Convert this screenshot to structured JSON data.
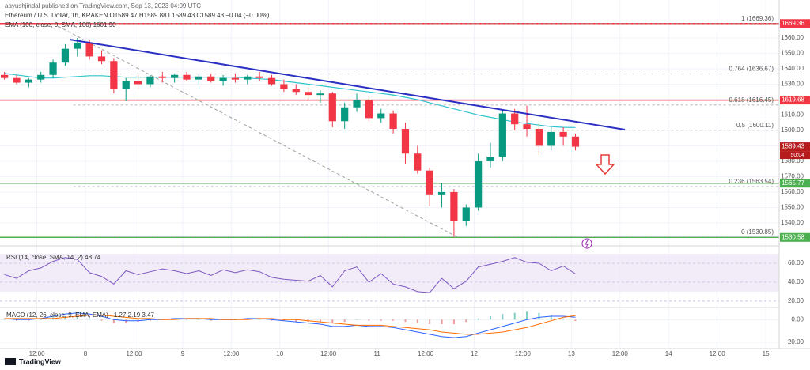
{
  "chart_data": {
    "type": "candlestick",
    "publisher": "aayushjindal published on TradingView.com, Sep 13, 2023 04:09 UTC",
    "title": "Ethereum / U.S. Dollar, 1h, KRAKEN  O1589.47 H1589.88 L1589.43 C1589.43 −0.04 (−0.00%)",
    "ema_label": "EMA (100, close, 0, SMA, 100)  1601.90",
    "brand": "TradingView",
    "colors": {
      "up": "#089981",
      "down": "#f23645",
      "trend": "#2b2fc2",
      "ema": "#2ec4cf",
      "fib": "#9a7a4a",
      "rsi": "#7e57c2",
      "macd": "#2962ff",
      "signal": "#ff6d00"
    },
    "grid": true,
    "xlim": [
      2.9,
      195.3
    ],
    "xticks": [
      {
        "value": 12,
        "label": "12:00"
      },
      {
        "value": 24,
        "label": "8"
      },
      {
        "value": 36,
        "label": "12:00"
      },
      {
        "value": 48,
        "label": "9"
      },
      {
        "value": 60,
        "label": "12:00"
      },
      {
        "value": 72,
        "label": "10"
      },
      {
        "value": 84,
        "label": "12:00"
      },
      {
        "value": 96,
        "label": "11"
      },
      {
        "value": 108,
        "label": "12:00"
      },
      {
        "value": 120,
        "label": "12"
      },
      {
        "value": 132,
        "label": "12:00"
      },
      {
        "value": 144,
        "label": "13"
      },
      {
        "value": 156,
        "label": "12:00"
      },
      {
        "value": 168,
        "label": "14"
      },
      {
        "value": 180,
        "label": "12:00"
      },
      {
        "value": 192,
        "label": "15"
      }
    ],
    "ylim": [
      1525.6,
      1675.4
    ],
    "yticks": [
      {
        "value": 1540,
        "label": "1540.00"
      },
      {
        "value": 1550,
        "label": "1550.00"
      },
      {
        "value": 1560,
        "label": "1560.00"
      },
      {
        "value": 1570,
        "label": "1570.00"
      },
      {
        "value": 1580,
        "label": "1580.00"
      },
      {
        "value": 1590,
        "label": "1590.00"
      },
      {
        "value": 1600,
        "label": "1600.00"
      },
      {
        "value": 1610,
        "label": "1610.00"
      },
      {
        "value": 1620,
        "label": "1620.00"
      },
      {
        "value": 1630,
        "label": "1630.00"
      },
      {
        "value": 1640,
        "label": "1640.00"
      },
      {
        "value": 1650,
        "label": "1650.00"
      },
      {
        "value": 1660,
        "label": "1660.00"
      }
    ],
    "x": [
      4,
      7,
      10,
      13,
      16,
      19,
      22,
      25,
      28,
      31,
      34,
      37,
      40,
      43,
      46,
      49,
      52,
      55,
      58,
      61,
      64,
      67,
      70,
      73,
      76,
      79,
      82,
      85,
      88,
      91,
      94,
      97,
      100,
      103,
      106,
      109,
      112,
      115,
      118,
      121,
      124,
      127,
      130,
      133,
      136,
      139,
      142,
      145
    ],
    "ohlc": [
      [
        1636,
        1638,
        1633,
        1634
      ],
      [
        1634,
        1636,
        1630,
        1631
      ],
      [
        1631,
        1634,
        1628,
        1633
      ],
      [
        1633,
        1638,
        1631,
        1636
      ],
      [
        1636,
        1646,
        1634,
        1644
      ],
      [
        1644,
        1656,
        1642,
        1653
      ],
      [
        1653,
        1660,
        1648,
        1657
      ],
      [
        1657,
        1659,
        1646,
        1648
      ],
      [
        1648,
        1652,
        1643,
        1645
      ],
      [
        1645,
        1647,
        1624,
        1627
      ],
      [
        1627,
        1634,
        1619,
        1632
      ],
      [
        1632,
        1636,
        1627,
        1630
      ],
      [
        1630,
        1636,
        1628,
        1635
      ],
      [
        1635,
        1638,
        1631,
        1634
      ],
      [
        1634,
        1637,
        1631,
        1636
      ],
      [
        1636,
        1638,
        1632,
        1633
      ],
      [
        1633,
        1637,
        1630,
        1635
      ],
      [
        1635,
        1637,
        1631,
        1632
      ],
      [
        1632,
        1636,
        1629,
        1634
      ],
      [
        1634,
        1637,
        1631,
        1633
      ],
      [
        1633,
        1636,
        1630,
        1635
      ],
      [
        1635,
        1638,
        1632,
        1634
      ],
      [
        1634,
        1636,
        1629,
        1630
      ],
      [
        1630,
        1633,
        1625,
        1627
      ],
      [
        1627,
        1630,
        1623,
        1625
      ],
      [
        1625,
        1628,
        1620,
        1623
      ],
      [
        1623,
        1626,
        1618,
        1624
      ],
      [
        1624,
        1625,
        1602,
        1606
      ],
      [
        1606,
        1618,
        1601,
        1615
      ],
      [
        1615,
        1624,
        1612,
        1620
      ],
      [
        1620,
        1622,
        1606,
        1608
      ],
      [
        1608,
        1614,
        1605,
        1611
      ],
      [
        1611,
        1613,
        1598,
        1601
      ],
      [
        1601,
        1605,
        1578,
        1585
      ],
      [
        1585,
        1590,
        1572,
        1574
      ],
      [
        1574,
        1576,
        1551,
        1558
      ],
      [
        1558,
        1566,
        1550,
        1560
      ],
      [
        1560,
        1562,
        1531,
        1541
      ],
      [
        1541,
        1552,
        1538,
        1550
      ],
      [
        1550,
        1585,
        1548,
        1580
      ],
      [
        1580,
        1592,
        1576,
        1583
      ],
      [
        1583,
        1613,
        1580,
        1611
      ],
      [
        1611,
        1614,
        1600,
        1604
      ],
      [
        1604,
        1616,
        1596,
        1601
      ],
      [
        1601,
        1604,
        1584,
        1590
      ],
      [
        1590,
        1602,
        1587,
        1599
      ],
      [
        1599,
        1602,
        1590,
        1596
      ],
      [
        1596,
        1598,
        1587,
        1589.43
      ]
    ],
    "ema": [
      1637,
      1636,
      1635,
      1634,
      1634,
      1634.5,
      1635,
      1635.5,
      1635.5,
      1635,
      1634.5,
      1634.5,
      1634.5,
      1634.5,
      1634.5,
      1634.5,
      1634.5,
      1634.5,
      1634.5,
      1634.5,
      1634,
      1633.5,
      1633,
      1632,
      1631,
      1630,
      1629,
      1628,
      1627,
      1626,
      1625,
      1624,
      1623,
      1621.5,
      1620,
      1618,
      1616,
      1614,
      1612,
      1610,
      1608.5,
      1607,
      1605.5,
      1604.5,
      1603.5,
      1602.5,
      1602,
      1601.9
    ],
    "trendline": [
      [
        20.1,
        1659
      ],
      [
        157.2,
        1600.5
      ]
    ],
    "fib_anchor": [
      [
        16,
        1669.36
      ],
      [
        115.8,
        1530.85
      ]
    ],
    "fib_start": 21,
    "fib_levels": [
      {
        "value": 1669.36,
        "label": "1 (1669.36)"
      },
      {
        "value": 1636.67,
        "label": "0.764 (1636.67)"
      },
      {
        "value": 1616.45,
        "label": "0.618 (1616.45)"
      },
      {
        "value": 1600.11,
        "label": "0.5 (1600.11)"
      },
      {
        "value": 1563.54,
        "label": "0.236 (1563.54)"
      },
      {
        "value": 1530.85,
        "label": "0 (1530.85)"
      }
    ],
    "levels": [
      {
        "value": 1669.36,
        "color": "#f23645"
      },
      {
        "value": 1619.68,
        "color": "#f23645"
      },
      {
        "value": 1565.77,
        "color": "#4caf50"
      },
      {
        "value": 1530.58,
        "color": "#4caf50"
      }
    ],
    "price_tags": [
      {
        "value": 1669.36,
        "color": "#f23645"
      },
      {
        "value": 1619.68,
        "color": "#f23645"
      },
      {
        "value": 1589.43,
        "color": "#b71c1c"
      },
      {
        "value": 1565.77,
        "color": "#4caf50"
      },
      {
        "value": 1530.58,
        "color": "#4caf50"
      }
    ],
    "countdown": "50:04",
    "rsi": {
      "label": "RSI (14, close, SMA, 14, 2)  48.74",
      "ylim": [
        14,
        72.5
      ],
      "band": [
        30,
        70
      ],
      "yticks": [
        {
          "value": 20,
          "label": "20.00"
        },
        {
          "value": 40,
          "label": "40.00"
        },
        {
          "value": 60,
          "label": "60.00"
        }
      ],
      "values": [
        48,
        44,
        52,
        55,
        62,
        66,
        64,
        50,
        46,
        38,
        52,
        48,
        51,
        54,
        52,
        49,
        52,
        47,
        53,
        50,
        53,
        51,
        45,
        43,
        42,
        41,
        47,
        35,
        52,
        56,
        40,
        49,
        38,
        35,
        30,
        29,
        44,
        33,
        41,
        56,
        59,
        62,
        66,
        61,
        60,
        52,
        57,
        48.74
      ]
    },
    "macd": {
      "label": "MACD (12, 26, close, 9, EMA, EMA)  −1.27  2.19  3.47",
      "ylim": [
        -25,
        10
      ],
      "yticks": [
        {
          "value": 0,
          "label": "0.00"
        },
        {
          "value": -20,
          "label": "−20.00"
        }
      ],
      "macd": [
        1,
        0,
        0,
        1,
        3,
        5,
        6,
        5,
        3,
        0,
        -1,
        -1,
        0,
        0,
        1,
        1,
        1,
        0,
        0,
        0,
        1,
        1,
        0,
        -1,
        -2,
        -3,
        -4,
        -6,
        -6,
        -5,
        -6,
        -6,
        -7,
        -9,
        -11,
        -13,
        -15,
        -16,
        -15,
        -12,
        -9,
        -6,
        -3,
        0,
        2,
        3,
        3,
        2.19
      ],
      "signal": [
        1,
        1,
        1,
        1,
        1,
        2,
        3,
        4,
        4,
        3,
        2,
        1,
        1,
        0,
        0,
        1,
        1,
        1,
        0,
        0,
        0,
        1,
        1,
        0,
        0,
        -1,
        -2,
        -3,
        -4,
        -5,
        -5,
        -5,
        -6,
        -7,
        -8,
        -9,
        -11,
        -12,
        -13,
        -13,
        -12,
        -11,
        -9,
        -7,
        -4,
        -1,
        2,
        3.47
      ],
      "histogram": [
        0,
        -1,
        -1,
        0,
        2,
        3,
        3,
        1,
        -1,
        -3,
        -3,
        -2,
        -1,
        0,
        1,
        0,
        0,
        -1,
        0,
        0,
        1,
        0,
        -1,
        -1,
        -2,
        -2,
        -2,
        -3,
        -2,
        0,
        -1,
        -1,
        -1,
        -2,
        -3,
        -4,
        -4,
        -4,
        -2,
        1,
        3,
        5,
        6,
        7,
        6,
        4,
        1,
        -1.27
      ]
    }
  }
}
